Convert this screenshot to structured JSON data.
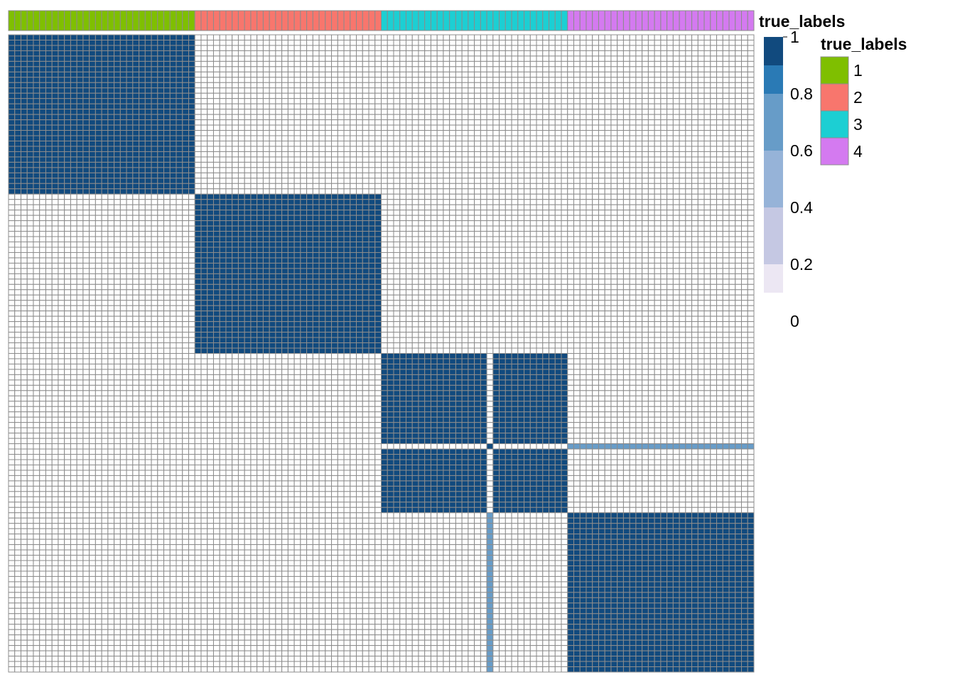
{
  "chart_data": {
    "type": "heatmap",
    "title": "",
    "annotation": {
      "name": "true_labels",
      "levels": [
        {
          "label": "1",
          "color": "#7FBF00",
          "count": 30
        },
        {
          "label": "2",
          "color": "#F8766D",
          "count": 30
        },
        {
          "label": "3",
          "color": "#1CCFD3",
          "count": 30
        },
        {
          "label": "4",
          "color": "#D47AF0",
          "count": 30
        }
      ]
    },
    "n_samples": 120,
    "blocks": [
      {
        "row_start": 0,
        "row_end": 29,
        "col_start": 0,
        "col_end": 29,
        "value": 1
      },
      {
        "row_start": 30,
        "row_end": 59,
        "col_start": 30,
        "col_end": 59,
        "value": 1
      },
      {
        "row_start": 60,
        "row_end": 89,
        "col_start": 60,
        "col_end": 89,
        "value": 1
      },
      {
        "row_start": 90,
        "row_end": 119,
        "col_start": 90,
        "col_end": 119,
        "value": 1
      }
    ],
    "outlier_sample": {
      "index": 77,
      "value_with_cluster3": 0.05,
      "value_with_cluster4": 0.6,
      "self_value": 1
    },
    "colorbar": {
      "title": "",
      "range": [
        0,
        1
      ],
      "ticks": [
        "1",
        "0.8",
        "0.6",
        "0.4",
        "0.2",
        "0"
      ],
      "bins": [
        {
          "from": 0.0,
          "to": 0.1,
          "color": "#FFFFFF"
        },
        {
          "from": 0.1,
          "to": 0.2,
          "color": "#ECE7F3"
        },
        {
          "from": 0.2,
          "to": 0.4,
          "color": "#C5C8E3"
        },
        {
          "from": 0.4,
          "to": 0.6,
          "color": "#96B3D8"
        },
        {
          "from": 0.6,
          "to": 0.8,
          "color": "#679CC8"
        },
        {
          "from": 0.8,
          "to": 0.9,
          "color": "#2A7AB5"
        },
        {
          "from": 0.9,
          "to": 1.0,
          "color": "#114A7E"
        }
      ]
    },
    "legend": {
      "title": "true_labels",
      "placement": "right"
    },
    "annotation_label": "true_labels",
    "cell_border_color": "#8C8C8C"
  }
}
